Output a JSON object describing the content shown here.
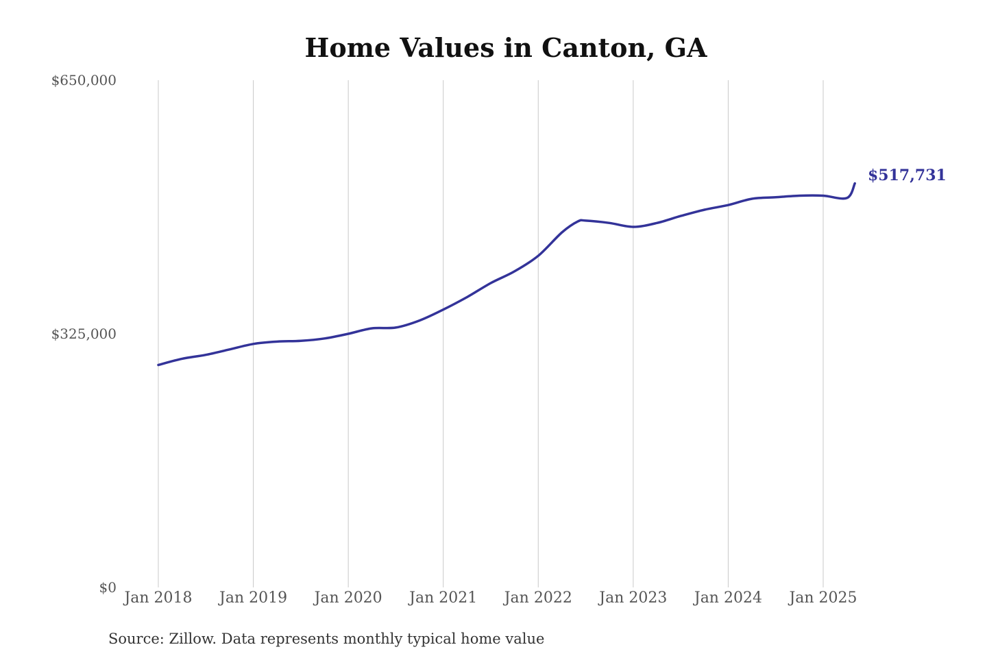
{
  "colors": {
    "series": "#333399",
    "grid": "#c8c8c8",
    "title": "#111111",
    "tick": "#555555"
  },
  "chart_data": {
    "type": "line",
    "title": "Home Values in Canton, GA",
    "source": "Source: Zillow. Data represents monthly typical home value",
    "ylim": [
      0,
      650000
    ],
    "yticks": [
      {
        "value": 0,
        "label": "$0"
      },
      {
        "value": 325000,
        "label": "$325,000"
      },
      {
        "value": 650000,
        "label": "$650,000"
      }
    ],
    "xlim": [
      "2018-01",
      "2025-05"
    ],
    "xticks": [
      "Jan 2018",
      "Jan 2019",
      "Jan 2020",
      "Jan 2021",
      "Jan 2022",
      "Jan 2023",
      "Jan 2024",
      "Jan 2025"
    ],
    "grid": "vertical at x ticks",
    "end_label": "$517,731",
    "series": [
      {
        "x": [
          "2018-01",
          "2018-04",
          "2018-07",
          "2018-10",
          "2019-01",
          "2019-04",
          "2019-07",
          "2019-10",
          "2020-01",
          "2020-04",
          "2020-07",
          "2020-10",
          "2021-01",
          "2021-04",
          "2021-07",
          "2021-10",
          "2022-01",
          "2022-04",
          "2022-06",
          "2022-07",
          "2022-10",
          "2023-01",
          "2023-04",
          "2023-07",
          "2023-10",
          "2024-01",
          "2024-04",
          "2024-07",
          "2024-10",
          "2025-01",
          "2025-04",
          "2025-05"
        ],
        "y": [
          285000,
          293000,
          298000,
          305000,
          312000,
          315000,
          316000,
          319000,
          325000,
          332000,
          333000,
          342000,
          356000,
          372000,
          390000,
          405000,
          425000,
          455000,
          469000,
          470000,
          467000,
          462000,
          467000,
          476000,
          484000,
          490000,
          498000,
          500000,
          502000,
          502000,
          499000,
          517731
        ]
      }
    ]
  }
}
